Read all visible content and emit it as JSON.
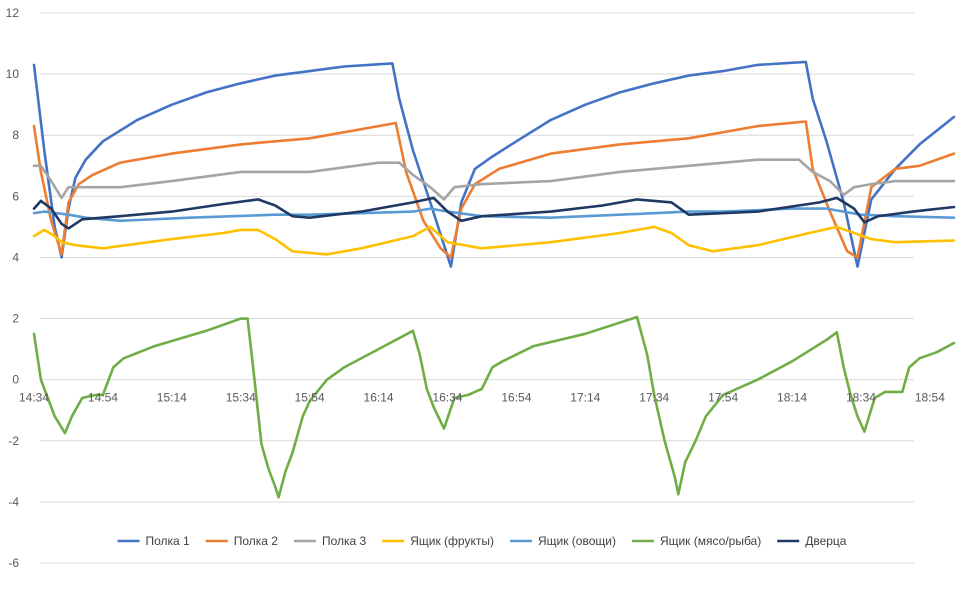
{
  "chart_data": {
    "type": "line",
    "title": "",
    "xlabel": "",
    "ylabel": "",
    "ylim": [
      -6,
      12
    ],
    "y_ticks": [
      -6,
      -4,
      -2,
      0,
      2,
      4,
      6,
      8,
      10,
      12
    ],
    "gridlines": true,
    "legend_position": "bottom",
    "x_tick_labels": [
      "14:34",
      "14:54",
      "15:14",
      "15:34",
      "15:54",
      "16:14",
      "16:34",
      "16:54",
      "17:14",
      "17:34",
      "17:54",
      "18:14",
      "18:34",
      "18:54"
    ],
    "x_tick_minutes": [
      0,
      20,
      40,
      60,
      80,
      100,
      120,
      140,
      160,
      180,
      200,
      220,
      240,
      260
    ],
    "x_range_minutes": [
      0,
      267
    ],
    "series": [
      {
        "name": "Полка 1",
        "color": "#4472C4",
        "points": [
          [
            0,
            10.3
          ],
          [
            3,
            7.5
          ],
          [
            6,
            5.0
          ],
          [
            8,
            4.0
          ],
          [
            10,
            5.6
          ],
          [
            12,
            6.6
          ],
          [
            15,
            7.2
          ],
          [
            20,
            7.8
          ],
          [
            30,
            8.5
          ],
          [
            40,
            9.0
          ],
          [
            50,
            9.4
          ],
          [
            60,
            9.7
          ],
          [
            70,
            9.95
          ],
          [
            80,
            10.1
          ],
          [
            90,
            10.25
          ],
          [
            104,
            10.35
          ],
          [
            106,
            9.2
          ],
          [
            110,
            7.5
          ],
          [
            115,
            5.8
          ],
          [
            121,
            3.7
          ],
          [
            124,
            5.8
          ],
          [
            128,
            6.9
          ],
          [
            133,
            7.3
          ],
          [
            140,
            7.8
          ],
          [
            150,
            8.5
          ],
          [
            160,
            9.0
          ],
          [
            170,
            9.4
          ],
          [
            180,
            9.7
          ],
          [
            190,
            9.95
          ],
          [
            200,
            10.1
          ],
          [
            210,
            10.3
          ],
          [
            224,
            10.4
          ],
          [
            226,
            9.2
          ],
          [
            230,
            7.8
          ],
          [
            235,
            5.8
          ],
          [
            239,
            3.7
          ],
          [
            243,
            5.9
          ],
          [
            250,
            6.9
          ],
          [
            257,
            7.7
          ],
          [
            267,
            8.6
          ]
        ]
      },
      {
        "name": "Полка 2",
        "color": "#ED7D31",
        "points": [
          [
            0,
            8.3
          ],
          [
            2,
            6.8
          ],
          [
            5,
            5.2
          ],
          [
            8,
            4.1
          ],
          [
            10,
            5.8
          ],
          [
            13,
            6.4
          ],
          [
            17,
            6.7
          ],
          [
            25,
            7.1
          ],
          [
            40,
            7.4
          ],
          [
            60,
            7.7
          ],
          [
            80,
            7.9
          ],
          [
            100,
            8.3
          ],
          [
            105,
            8.4
          ],
          [
            108,
            6.8
          ],
          [
            113,
            5.2
          ],
          [
            118,
            4.3
          ],
          [
            121,
            4.0
          ],
          [
            124,
            5.6
          ],
          [
            128,
            6.4
          ],
          [
            135,
            6.9
          ],
          [
            150,
            7.4
          ],
          [
            170,
            7.7
          ],
          [
            190,
            7.9
          ],
          [
            210,
            8.3
          ],
          [
            224,
            8.45
          ],
          [
            226,
            6.9
          ],
          [
            231,
            5.5
          ],
          [
            236,
            4.2
          ],
          [
            239,
            4.0
          ],
          [
            243,
            6.3
          ],
          [
            250,
            6.9
          ],
          [
            257,
            7.0
          ],
          [
            267,
            7.4
          ]
        ]
      },
      {
        "name": "Полка 3",
        "color": "#A5A5A5",
        "points": [
          [
            0,
            7.0
          ],
          [
            2,
            7.0
          ],
          [
            5,
            6.5
          ],
          [
            8,
            5.95
          ],
          [
            10,
            6.3
          ],
          [
            14,
            6.3
          ],
          [
            25,
            6.3
          ],
          [
            40,
            6.5
          ],
          [
            60,
            6.8
          ],
          [
            80,
            6.8
          ],
          [
            100,
            7.1
          ],
          [
            106,
            7.1
          ],
          [
            110,
            6.7
          ],
          [
            115,
            6.3
          ],
          [
            119,
            5.9
          ],
          [
            122,
            6.3
          ],
          [
            130,
            6.4
          ],
          [
            150,
            6.5
          ],
          [
            170,
            6.8
          ],
          [
            190,
            7.0
          ],
          [
            210,
            7.2
          ],
          [
            222,
            7.2
          ],
          [
            226,
            6.8
          ],
          [
            231,
            6.5
          ],
          [
            235,
            6.05
          ],
          [
            238,
            6.3
          ],
          [
            243,
            6.4
          ],
          [
            250,
            6.5
          ],
          [
            267,
            6.5
          ]
        ]
      },
      {
        "name": "Ящик (фрукты)",
        "color": "#FFC000",
        "points": [
          [
            0,
            4.7
          ],
          [
            3,
            4.9
          ],
          [
            6,
            4.7
          ],
          [
            8,
            4.5
          ],
          [
            12,
            4.4
          ],
          [
            20,
            4.3
          ],
          [
            40,
            4.6
          ],
          [
            55,
            4.8
          ],
          [
            60,
            4.9
          ],
          [
            65,
            4.9
          ],
          [
            70,
            4.6
          ],
          [
            75,
            4.2
          ],
          [
            85,
            4.1
          ],
          [
            95,
            4.3
          ],
          [
            110,
            4.7
          ],
          [
            115,
            5.0
          ],
          [
            120,
            4.5
          ],
          [
            130,
            4.3
          ],
          [
            150,
            4.5
          ],
          [
            170,
            4.8
          ],
          [
            180,
            5.0
          ],
          [
            185,
            4.8
          ],
          [
            190,
            4.4
          ],
          [
            197,
            4.2
          ],
          [
            210,
            4.4
          ],
          [
            225,
            4.8
          ],
          [
            233,
            5.0
          ],
          [
            238,
            4.8
          ],
          [
            243,
            4.6
          ],
          [
            250,
            4.5
          ],
          [
            267,
            4.55
          ]
        ]
      },
      {
        "name": "Ящик (овощи)",
        "color": "#5B9BD5",
        "points": [
          [
            0,
            5.45
          ],
          [
            3,
            5.5
          ],
          [
            10,
            5.4
          ],
          [
            15,
            5.3
          ],
          [
            25,
            5.2
          ],
          [
            45,
            5.3
          ],
          [
            70,
            5.4
          ],
          [
            80,
            5.4
          ],
          [
            110,
            5.5
          ],
          [
            115,
            5.6
          ],
          [
            120,
            5.5
          ],
          [
            130,
            5.35
          ],
          [
            150,
            5.3
          ],
          [
            170,
            5.4
          ],
          [
            190,
            5.5
          ],
          [
            200,
            5.5
          ],
          [
            220,
            5.6
          ],
          [
            230,
            5.6
          ],
          [
            240,
            5.4
          ],
          [
            250,
            5.35
          ],
          [
            267,
            5.3
          ]
        ]
      },
      {
        "name": "Ящик (мясо/рыба)",
        "color": "#70AD47",
        "points": [
          [
            0,
            1.5
          ],
          [
            2,
            0
          ],
          [
            4,
            -0.6
          ],
          [
            6,
            -1.2
          ],
          [
            9,
            -1.75
          ],
          [
            11,
            -1.2
          ],
          [
            14,
            -0.6
          ],
          [
            18,
            -0.5
          ],
          [
            20,
            -0.5
          ],
          [
            23,
            0.4
          ],
          [
            26,
            0.7
          ],
          [
            35,
            1.1
          ],
          [
            50,
            1.6
          ],
          [
            60,
            2.0
          ],
          [
            62,
            2.0
          ],
          [
            64,
            0
          ],
          [
            66,
            -2.1
          ],
          [
            68,
            -2.9
          ],
          [
            70,
            -3.5
          ],
          [
            71,
            -3.85
          ],
          [
            73,
            -3.0
          ],
          [
            75,
            -2.4
          ],
          [
            78,
            -1.2
          ],
          [
            80,
            -0.7
          ],
          [
            85,
            0
          ],
          [
            90,
            0.4
          ],
          [
            100,
            1.0
          ],
          [
            110,
            1.6
          ],
          [
            112,
            0.8
          ],
          [
            114,
            -0.3
          ],
          [
            116,
            -0.9
          ],
          [
            119,
            -1.6
          ],
          [
            122,
            -0.6
          ],
          [
            126,
            -0.5
          ],
          [
            130,
            -0.3
          ],
          [
            133,
            0.4
          ],
          [
            136,
            0.6
          ],
          [
            145,
            1.1
          ],
          [
            160,
            1.5
          ],
          [
            175,
            2.05
          ],
          [
            178,
            0.8
          ],
          [
            180,
            -0.5
          ],
          [
            183,
            -2.0
          ],
          [
            186,
            -3.2
          ],
          [
            187,
            -3.75
          ],
          [
            189,
            -2.7
          ],
          [
            192,
            -2.0
          ],
          [
            195,
            -1.2
          ],
          [
            200,
            -0.5
          ],
          [
            210,
            0
          ],
          [
            220,
            0.6
          ],
          [
            230,
            1.3
          ],
          [
            233,
            1.55
          ],
          [
            235,
            0.4
          ],
          [
            237,
            -0.5
          ],
          [
            239,
            -1.2
          ],
          [
            241,
            -1.7
          ],
          [
            244,
            -0.6
          ],
          [
            247,
            -0.4
          ],
          [
            252,
            -0.4
          ],
          [
            254,
            0.4
          ],
          [
            257,
            0.7
          ],
          [
            262,
            0.9
          ],
          [
            267,
            1.2
          ]
        ]
      },
      {
        "name": "Дверца",
        "color": "#203864",
        "points": [
          [
            0,
            5.6
          ],
          [
            2,
            5.85
          ],
          [
            5,
            5.6
          ],
          [
            8,
            5.1
          ],
          [
            10,
            4.95
          ],
          [
            14,
            5.25
          ],
          [
            25,
            5.35
          ],
          [
            40,
            5.5
          ],
          [
            55,
            5.75
          ],
          [
            65,
            5.9
          ],
          [
            70,
            5.7
          ],
          [
            75,
            5.35
          ],
          [
            80,
            5.3
          ],
          [
            95,
            5.5
          ],
          [
            110,
            5.8
          ],
          [
            116,
            5.95
          ],
          [
            120,
            5.5
          ],
          [
            124,
            5.2
          ],
          [
            130,
            5.35
          ],
          [
            150,
            5.5
          ],
          [
            165,
            5.7
          ],
          [
            175,
            5.9
          ],
          [
            185,
            5.8
          ],
          [
            190,
            5.4
          ],
          [
            210,
            5.5
          ],
          [
            228,
            5.8
          ],
          [
            233,
            5.95
          ],
          [
            238,
            5.6
          ],
          [
            241,
            5.15
          ],
          [
            245,
            5.35
          ],
          [
            255,
            5.5
          ],
          [
            267,
            5.65
          ]
        ]
      }
    ]
  }
}
